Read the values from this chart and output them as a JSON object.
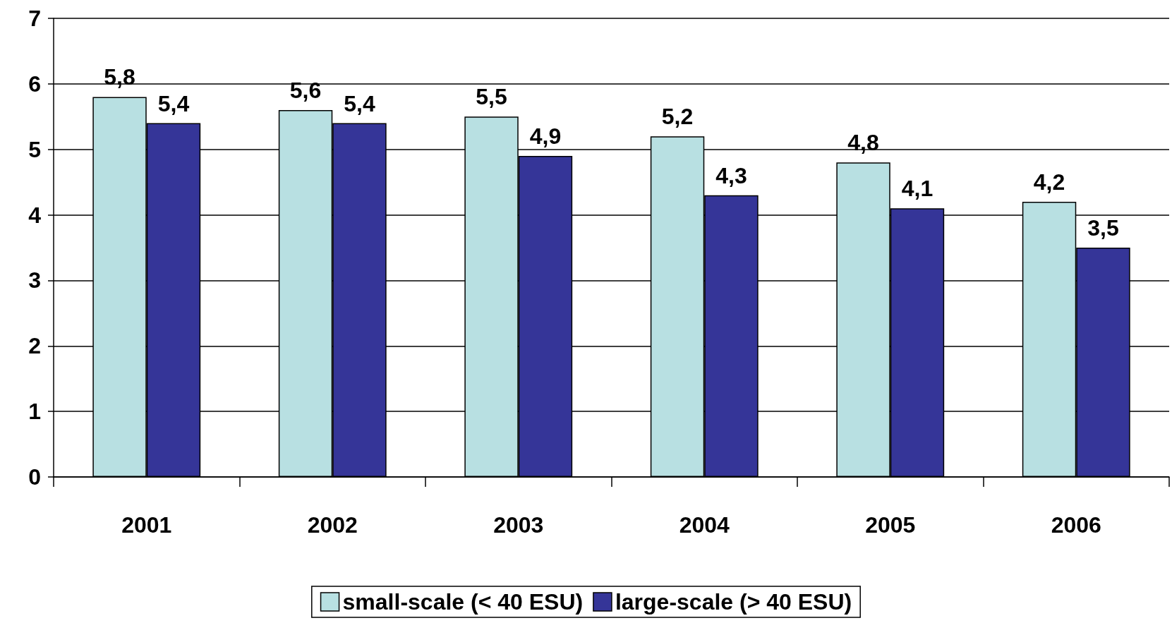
{
  "chart_data": {
    "type": "bar",
    "categories": [
      "2001",
      "2002",
      "2003",
      "2004",
      "2005",
      "2006"
    ],
    "series": [
      {
        "name": "small-scale (< 40 ESU)",
        "color": "#b8e0e2",
        "values": [
          5.8,
          5.6,
          5.5,
          5.2,
          4.8,
          4.2
        ],
        "value_labels": [
          "5,8",
          "5,6",
          "5,5",
          "5,2",
          "4,8",
          "4,2"
        ]
      },
      {
        "name": "large-scale (> 40 ESU)",
        "color": "#353598",
        "values": [
          5.4,
          5.4,
          4.9,
          4.3,
          4.1,
          3.5
        ],
        "value_labels": [
          "5,4",
          "5,4",
          "4,9",
          "4,3",
          "4,1",
          "3,5"
        ]
      }
    ],
    "ylim": [
      0,
      7
    ],
    "yticks": [
      0,
      1,
      2,
      3,
      4,
      5,
      6,
      7
    ],
    "grid": "y",
    "legend": "bottom"
  }
}
